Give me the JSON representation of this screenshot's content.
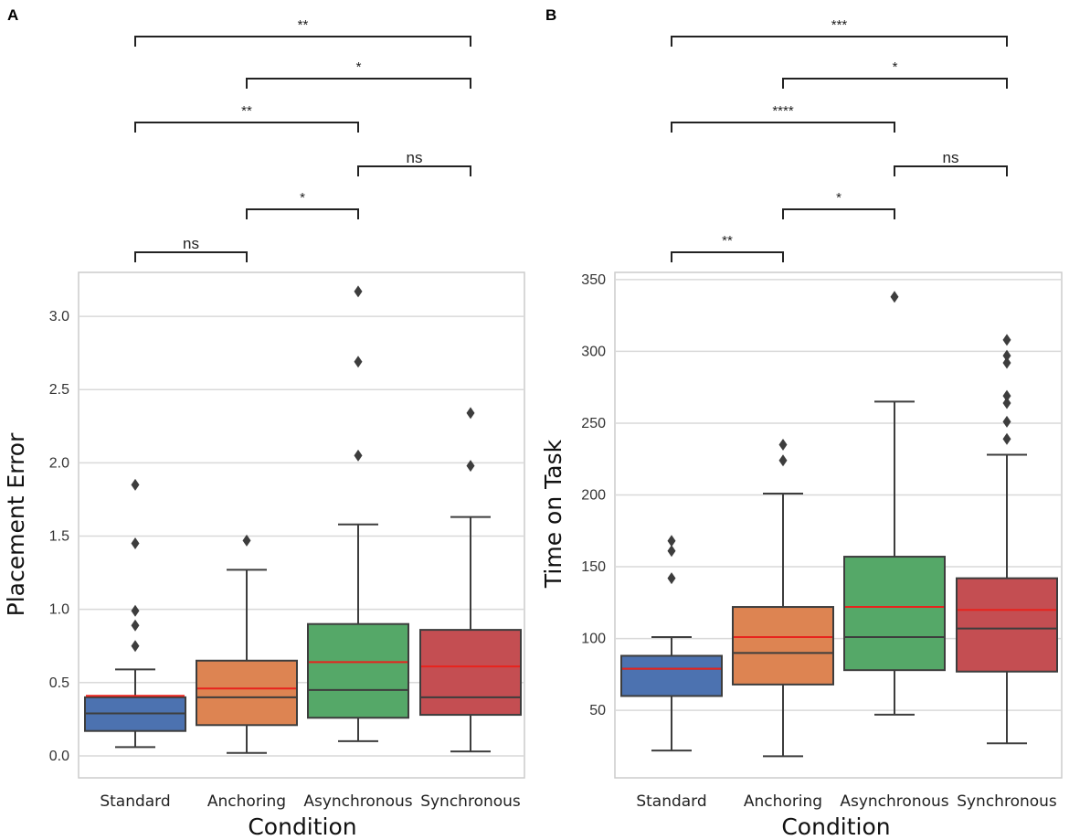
{
  "chart_data": [
    {
      "panel": "A",
      "type": "box",
      "xlabel": "Condition",
      "ylabel": "Placement Error",
      "ylim": [
        -0.15,
        3.3
      ],
      "yticks": [
        0.0,
        0.5,
        1.0,
        1.5,
        2.0,
        2.5,
        3.0
      ],
      "ytick_labels": [
        "0.0",
        "0.5",
        "1.0",
        "1.5",
        "2.0",
        "2.5",
        "3.0"
      ],
      "grid": "horizontal",
      "categories": [
        "Standard",
        "Anchoring",
        "Asynchronous",
        "Synchronous"
      ],
      "boxes": [
        {
          "name": "Standard",
          "color": "#4c72b0",
          "whisker_low": 0.06,
          "q1": 0.17,
          "median": 0.29,
          "mean": 0.41,
          "q3": 0.4,
          "whisker_high": 0.59,
          "outliers": [
            0.75,
            0.89,
            0.99,
            1.45,
            1.85
          ]
        },
        {
          "name": "Anchoring",
          "color": "#dd8452",
          "whisker_low": 0.02,
          "q1": 0.21,
          "median": 0.4,
          "mean": 0.46,
          "q3": 0.65,
          "whisker_high": 1.27,
          "outliers": [
            1.47
          ]
        },
        {
          "name": "Asynchronous",
          "color": "#55a868",
          "whisker_low": 0.1,
          "q1": 0.26,
          "median": 0.45,
          "mean": 0.64,
          "q3": 0.9,
          "whisker_high": 1.58,
          "outliers": [
            2.05,
            2.69,
            3.17
          ]
        },
        {
          "name": "Synchronous",
          "color": "#c44e52",
          "whisker_low": 0.03,
          "q1": 0.28,
          "median": 0.4,
          "mean": 0.61,
          "q3": 0.86,
          "whisker_high": 1.63,
          "outliers": [
            1.98,
            2.34
          ]
        }
      ],
      "significance": [
        {
          "from": 0,
          "to": 1,
          "label": "ns"
        },
        {
          "from": 1,
          "to": 2,
          "label": "*"
        },
        {
          "from": 2,
          "to": 3,
          "label": "ns"
        },
        {
          "from": 0,
          "to": 2,
          "label": "**"
        },
        {
          "from": 1,
          "to": 3,
          "label": "*"
        },
        {
          "from": 0,
          "to": 3,
          "label": "**"
        }
      ]
    },
    {
      "panel": "B",
      "type": "box",
      "xlabel": "Condition",
      "ylabel": "Time on Task",
      "ylim": [
        3,
        355
      ],
      "yticks": [
        50,
        100,
        150,
        200,
        250,
        300,
        350
      ],
      "ytick_labels": [
        "50",
        "100",
        "150",
        "200",
        "250",
        "300",
        "350"
      ],
      "grid": "horizontal",
      "categories": [
        "Standard",
        "Anchoring",
        "Asynchronous",
        "Synchronous"
      ],
      "boxes": [
        {
          "name": "Standard",
          "color": "#4c72b0",
          "whisker_low": 22,
          "q1": 60,
          "median": 79,
          "mean": 79,
          "q3": 88,
          "whisker_high": 101,
          "outliers": [
            142,
            161,
            168
          ]
        },
        {
          "name": "Anchoring",
          "color": "#dd8452",
          "whisker_low": 18,
          "q1": 68,
          "median": 90,
          "mean": 101,
          "q3": 122,
          "whisker_high": 201,
          "outliers": [
            224,
            235
          ]
        },
        {
          "name": "Asynchronous",
          "color": "#55a868",
          "whisker_low": 47,
          "q1": 78,
          "median": 101,
          "mean": 122,
          "q3": 157,
          "whisker_high": 265,
          "outliers": [
            338
          ]
        },
        {
          "name": "Synchronous",
          "color": "#c44e52",
          "whisker_low": 27,
          "q1": 77,
          "median": 107,
          "mean": 120,
          "q3": 142,
          "whisker_high": 228,
          "outliers": [
            239,
            251,
            264,
            269,
            292,
            297,
            308
          ]
        }
      ],
      "significance": [
        {
          "from": 0,
          "to": 1,
          "label": "**"
        },
        {
          "from": 1,
          "to": 2,
          "label": "*"
        },
        {
          "from": 2,
          "to": 3,
          "label": "ns"
        },
        {
          "from": 0,
          "to": 2,
          "label": "****"
        },
        {
          "from": 1,
          "to": 3,
          "label": "*"
        },
        {
          "from": 0,
          "to": 3,
          "label": "***"
        }
      ]
    }
  ]
}
